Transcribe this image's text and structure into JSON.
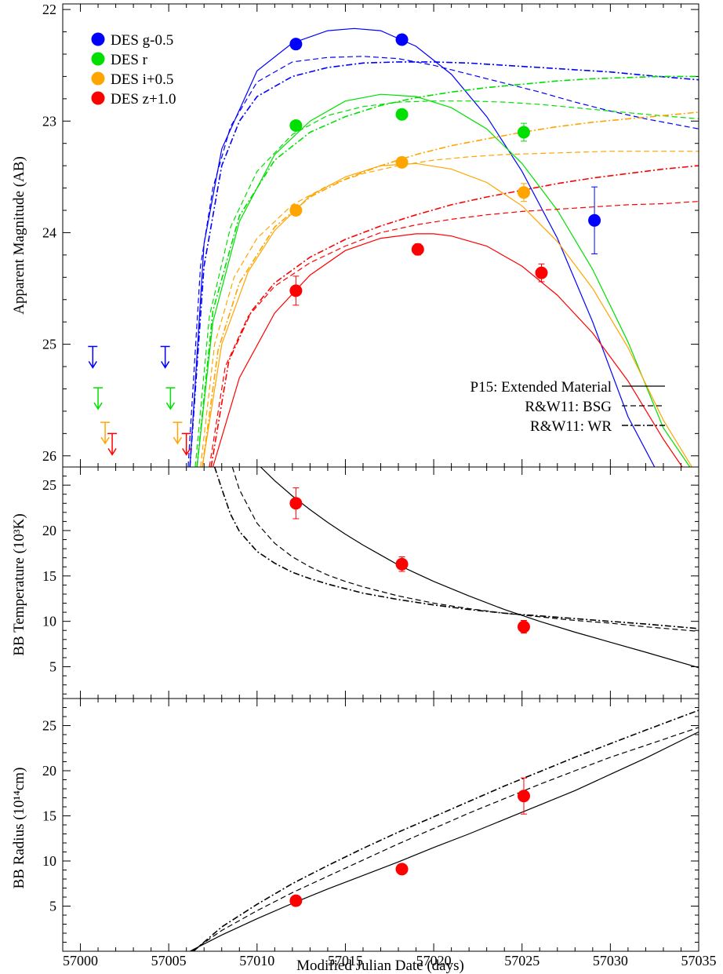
{
  "colors": {
    "g": "#0000ff",
    "r": "#00e000",
    "i": "#ffa500",
    "z": "#ff0000",
    "model": "#000000"
  },
  "figure": {
    "xlabel": "Modified Julian Date (days)",
    "x_ticks": [
      "57000",
      "57005",
      "57010",
      "57015",
      "57020",
      "57025",
      "57030",
      "57035"
    ]
  },
  "chart_data": [
    {
      "type": "line",
      "panel": "magnitude",
      "ylabel": "Apparent Magnitude (AB)",
      "xlim": [
        56999,
        57035
      ],
      "ylim": [
        26.1,
        21.95
      ],
      "y_inverted": true,
      "y_ticks": [
        "22",
        "23",
        "24",
        "25",
        "26"
      ],
      "legend": {
        "position": "top-left",
        "entries": [
          {
            "band": "g",
            "label": "DES g-0.5"
          },
          {
            "band": "r",
            "label": "DES r"
          },
          {
            "band": "i",
            "label": "DES i+0.5"
          },
          {
            "band": "z",
            "label": "DES z+1.0"
          }
        ]
      },
      "model_legend": {
        "position": "bottom-right",
        "entries": [
          {
            "style": "solid",
            "label": "P15: Extended Material"
          },
          {
            "style": "dashed",
            "label": "R&W11: BSG"
          },
          {
            "style": "dashdot",
            "label": "R&W11: WR"
          }
        ]
      },
      "detections": [
        {
          "band": "g",
          "x": [
            57012.2,
            57018.2,
            57029.1
          ],
          "y": [
            22.31,
            22.27,
            23.89
          ],
          "err": [
            0.02,
            0.02,
            0.3
          ]
        },
        {
          "band": "r",
          "x": [
            57012.2,
            57018.2,
            57025.1
          ],
          "y": [
            23.04,
            22.94,
            23.1
          ],
          "err": [
            0.02,
            0.02,
            0.08
          ]
        },
        {
          "band": "i",
          "x": [
            57012.2,
            57018.2,
            57025.1
          ],
          "y": [
            23.8,
            23.37,
            23.64
          ],
          "err": [
            0.03,
            0.03,
            0.08
          ]
        },
        {
          "band": "z",
          "x": [
            57012.2,
            57019.1,
            57026.1
          ],
          "y": [
            24.52,
            24.15,
            24.36
          ],
          "err": [
            0.13,
            0.05,
            0.08
          ]
        }
      ],
      "upper_limits": [
        {
          "band": "g",
          "x": [
            57000.7,
            57004.8
          ],
          "y": [
            25.02,
            25.02
          ]
        },
        {
          "band": "r",
          "x": [
            57001.0,
            57005.1
          ],
          "y": [
            25.39,
            25.39
          ]
        },
        {
          "band": "i",
          "x": [
            57001.4,
            57005.5
          ],
          "y": [
            25.7,
            25.7
          ]
        },
        {
          "band": "z",
          "x": [
            57001.8,
            57006.0
          ],
          "y": [
            25.8,
            25.8
          ]
        }
      ],
      "models": [
        {
          "band": "g",
          "style": "solid",
          "x": [
            57006.2,
            57007,
            57008,
            57010,
            57012,
            57014,
            57015.5,
            57017,
            57019,
            57021,
            57023,
            57025,
            57027,
            57029,
            57031,
            57032.5,
            57034
          ],
          "y": [
            26.1,
            24.1,
            23.25,
            22.55,
            22.3,
            22.19,
            22.17,
            22.19,
            22.33,
            22.58,
            22.96,
            23.45,
            24.05,
            24.8,
            25.65,
            26.1,
            26.5
          ]
        },
        {
          "band": "g",
          "style": "dashed",
          "x": [
            57006.1,
            57006.8,
            57007.5,
            57008.5,
            57010,
            57012,
            57014,
            57016,
            57018,
            57020,
            57022,
            57024,
            57026,
            57028,
            57030,
            57032,
            57035
          ],
          "y": [
            26.1,
            24.3,
            23.6,
            23.05,
            22.65,
            22.47,
            22.43,
            22.42,
            22.44,
            22.5,
            22.58,
            22.66,
            22.74,
            22.83,
            22.91,
            22.98,
            23.07
          ]
        },
        {
          "band": "g",
          "style": "dashdot",
          "x": [
            57006.2,
            57007,
            57008,
            57009,
            57010,
            57012,
            57014,
            57016,
            57018,
            57020,
            57022,
            57024,
            57026,
            57028,
            57030,
            57032,
            57035
          ],
          "y": [
            26.1,
            24.3,
            23.4,
            23.0,
            22.78,
            22.6,
            22.52,
            22.48,
            22.47,
            22.47,
            22.48,
            22.5,
            22.52,
            22.54,
            22.56,
            22.59,
            22.63
          ]
        },
        {
          "band": "r",
          "style": "solid",
          "x": [
            57006.6,
            57007.5,
            57009,
            57011,
            57013,
            57015,
            57017,
            57019,
            57021,
            57023,
            57025,
            57027,
            57029,
            57031,
            57033,
            57034.5
          ],
          "y": [
            26.1,
            24.8,
            23.9,
            23.3,
            23.0,
            22.82,
            22.76,
            22.78,
            22.88,
            23.07,
            23.38,
            23.8,
            24.33,
            24.98,
            25.75,
            26.1
          ]
        },
        {
          "band": "r",
          "style": "dashed",
          "x": [
            57006.5,
            57007.3,
            57008.5,
            57010,
            57012,
            57014,
            57016,
            57018,
            57020,
            57022,
            57024,
            57026,
            57028,
            57030,
            57032,
            57035
          ],
          "y": [
            26.1,
            24.75,
            23.95,
            23.45,
            23.12,
            22.95,
            22.87,
            22.83,
            22.82,
            22.82,
            22.83,
            22.85,
            22.88,
            22.91,
            22.94,
            22.98
          ]
        },
        {
          "band": "r",
          "style": "dashdot",
          "x": [
            57006.6,
            57007.5,
            57009,
            57011,
            57013,
            57015,
            57017,
            57019,
            57021,
            57023,
            57025,
            57027,
            57029,
            57031,
            57033,
            57035
          ],
          "y": [
            26.1,
            24.7,
            23.85,
            23.35,
            23.1,
            22.96,
            22.86,
            22.79,
            22.74,
            22.7,
            22.67,
            22.64,
            22.62,
            22.61,
            22.6,
            22.6
          ]
        },
        {
          "band": "i",
          "style": "solid",
          "x": [
            57006.9,
            57008,
            57009.5,
            57011,
            57013,
            57015,
            57017,
            57019,
            57021,
            57023,
            57025,
            57027,
            57029,
            57031,
            57033,
            57035
          ],
          "y": [
            26.1,
            25.0,
            24.35,
            23.98,
            23.67,
            23.5,
            23.4,
            23.38,
            23.43,
            23.55,
            23.76,
            24.08,
            24.5,
            25.03,
            25.68,
            26.2
          ]
        },
        {
          "band": "i",
          "style": "dashed",
          "x": [
            57006.8,
            57007.6,
            57008.7,
            57010,
            57012,
            57014,
            57016,
            57018,
            57020,
            57022,
            57024,
            57026,
            57028,
            57030,
            57032,
            57035
          ],
          "y": [
            26.1,
            25.0,
            24.4,
            24.05,
            23.75,
            23.58,
            23.47,
            23.4,
            23.35,
            23.32,
            23.3,
            23.29,
            23.28,
            23.27,
            23.27,
            23.27
          ]
        },
        {
          "band": "i",
          "style": "dashdot",
          "x": [
            57006.9,
            57007.8,
            57009,
            57011,
            57013,
            57015,
            57017,
            57019,
            57021,
            57023,
            57025,
            57027,
            57029,
            57031,
            57033,
            57035
          ],
          "y": [
            26.1,
            25.05,
            24.45,
            23.95,
            23.68,
            23.52,
            23.4,
            23.3,
            23.22,
            23.16,
            23.1,
            23.05,
            23.01,
            22.98,
            22.95,
            22.92
          ]
        },
        {
          "band": "z",
          "style": "solid",
          "x": [
            57007.5,
            57009,
            57011,
            57013,
            57015,
            57017,
            57019,
            57020,
            57021,
            57023,
            57025,
            57027,
            57029,
            57031,
            57033,
            57034.5
          ],
          "y": [
            26.1,
            25.3,
            24.72,
            24.38,
            24.16,
            24.05,
            24.01,
            24.01,
            24.03,
            24.12,
            24.3,
            24.56,
            24.9,
            25.33,
            25.85,
            26.2
          ]
        },
        {
          "band": "z",
          "style": "dashed",
          "x": [
            57007.3,
            57008.2,
            57009.5,
            57011,
            57013,
            57015,
            57017,
            57019,
            57021,
            57023,
            57025,
            57027,
            57029,
            57031,
            57033,
            57035
          ],
          "y": [
            26.1,
            25.2,
            24.75,
            24.48,
            24.27,
            24.12,
            24.0,
            23.93,
            23.88,
            23.84,
            23.81,
            23.79,
            23.77,
            23.75,
            23.74,
            23.72
          ]
        },
        {
          "band": "z",
          "style": "dashdot",
          "x": [
            57007.4,
            57008.4,
            57009.7,
            57011,
            57013,
            57015,
            57017,
            57019,
            57021,
            57023,
            57025,
            57027,
            57029,
            57031,
            57033,
            57035
          ],
          "y": [
            26.1,
            25.15,
            24.7,
            24.45,
            24.22,
            24.06,
            23.94,
            23.84,
            23.75,
            23.68,
            23.62,
            23.56,
            23.51,
            23.47,
            23.43,
            23.4
          ]
        }
      ]
    },
    {
      "type": "line",
      "panel": "temperature",
      "ylabel": "BB Temperature   (10³K)",
      "xlim": [
        56999,
        57035
      ],
      "ylim": [
        1.5,
        27
      ],
      "y_ticks": [
        "5",
        "10",
        "15",
        "20",
        "25"
      ],
      "points": {
        "x": [
          57012.2,
          57018.2,
          57025.1
        ],
        "y": [
          23.0,
          16.3,
          9.4
        ],
        "err": [
          1.7,
          0.8,
          0.7
        ],
        "band": "z"
      },
      "models": [
        {
          "style": "solid",
          "x": [
            57010.2,
            57011,
            57012,
            57013,
            57014,
            57015,
            57016,
            57017,
            57018,
            57019,
            57020,
            57022,
            57024,
            57026,
            57028,
            57030,
            57032,
            57035
          ],
          "y": [
            27.0,
            25.5,
            23.8,
            22.3,
            20.9,
            19.6,
            18.4,
            17.3,
            16.2,
            15.3,
            14.4,
            12.8,
            11.3,
            10.0,
            8.8,
            7.7,
            6.6,
            4.9
          ]
        },
        {
          "style": "dashed",
          "x": [
            57008.6,
            57009,
            57010,
            57011,
            57012,
            57013,
            57014,
            57015,
            57016,
            57018,
            57020,
            57022,
            57024,
            57026,
            57028,
            57030,
            57032,
            57035
          ],
          "y": [
            27.0,
            24.5,
            20.8,
            18.6,
            17.1,
            16.0,
            15.1,
            14.4,
            13.8,
            12.8,
            12.0,
            11.4,
            10.9,
            10.5,
            10.1,
            9.8,
            9.4,
            8.9
          ]
        },
        {
          "style": "dashdot",
          "x": [
            57007.6,
            57008,
            57008.5,
            57009,
            57010,
            57011,
            57012,
            57013,
            57014,
            57016,
            57018,
            57020,
            57022,
            57024,
            57026,
            57028,
            57030,
            57032,
            57035
          ],
          "y": [
            27.0,
            24.6,
            21.8,
            19.9,
            17.7,
            16.4,
            15.4,
            14.7,
            14.1,
            13.1,
            12.4,
            11.8,
            11.3,
            10.9,
            10.6,
            10.3,
            10.0,
            9.7,
            9.2
          ]
        }
      ]
    },
    {
      "type": "line",
      "panel": "radius",
      "ylabel": "BB Radius   (10¹⁴cm)",
      "xlim": [
        56999,
        57035
      ],
      "ylim": [
        0,
        28
      ],
      "y_ticks": [
        "5",
        "10",
        "15",
        "20",
        "25"
      ],
      "points": {
        "x": [
          57012.2,
          57018.2,
          57025.1
        ],
        "y": [
          5.6,
          9.1,
          17.2
        ],
        "err": [
          0.4,
          0.5,
          2.0
        ],
        "band": "z"
      },
      "models": [
        {
          "style": "solid",
          "x": [
            57006.2,
            57008,
            57010,
            57012,
            57014,
            57016,
            57018,
            57020,
            57022,
            57024,
            57026,
            57028,
            57030,
            57032,
            57035
          ],
          "y": [
            0.0,
            1.8,
            3.6,
            5.3,
            6.9,
            8.4,
            9.9,
            11.5,
            13.0,
            14.6,
            16.2,
            17.8,
            19.6,
            21.4,
            24.3
          ]
        },
        {
          "style": "dashed",
          "x": [
            57006.3,
            57008,
            57010,
            57012,
            57014,
            57016,
            57018,
            57020,
            57022,
            57024,
            57026,
            57028,
            57030,
            57032,
            57035
          ],
          "y": [
            0.0,
            2.3,
            4.5,
            6.5,
            8.3,
            10.1,
            11.9,
            13.6,
            15.3,
            16.9,
            18.5,
            20.0,
            21.5,
            22.8,
            24.8
          ]
        },
        {
          "style": "dashdot",
          "x": [
            57006.4,
            57008,
            57010,
            57012,
            57014,
            57016,
            57018,
            57020,
            57022,
            57024,
            57026,
            57028,
            57030,
            57032,
            57035
          ],
          "y": [
            0.0,
            2.7,
            5.2,
            7.5,
            9.5,
            11.4,
            13.2,
            14.9,
            16.6,
            18.3,
            19.9,
            21.5,
            23.0,
            24.5,
            26.7
          ]
        }
      ]
    }
  ]
}
